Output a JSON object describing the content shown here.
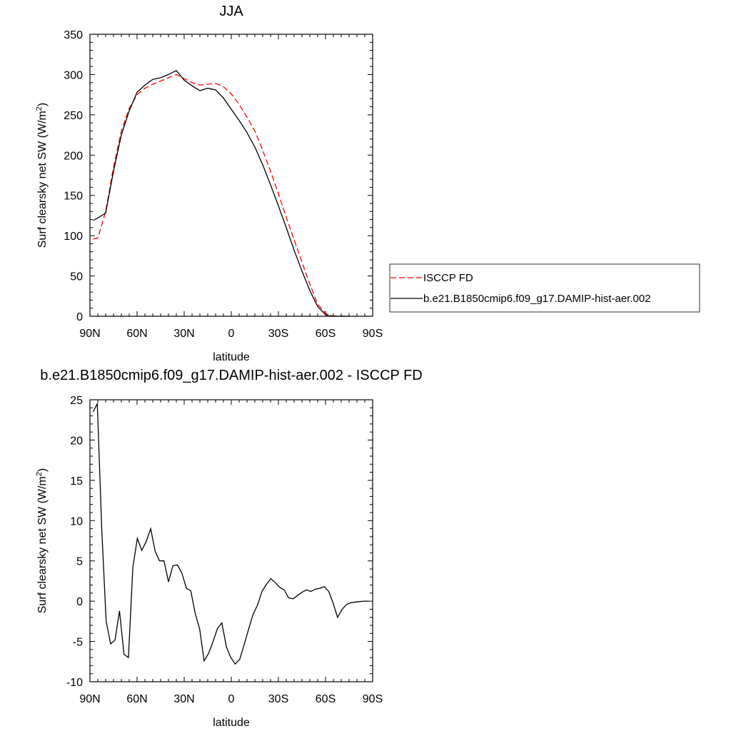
{
  "colors": {
    "obs": "#ff0000",
    "model": "#000000",
    "frame": "#000000",
    "background": "#ffffff"
  },
  "chart_data": [
    {
      "type": "line",
      "title": "JJA",
      "xlabel": "latitude",
      "ylabel": "Surf clearsky net SW (W/m",
      "ylabel_sup": "2",
      "ylabel_tail": ")",
      "xlim": [
        90,
        -90
      ],
      "ylim": [
        0,
        350
      ],
      "x_ticks": [
        90,
        60,
        30,
        0,
        -30,
        -60,
        -90
      ],
      "x_tick_labels": [
        "90N",
        "60N",
        "30N",
        "0",
        "30S",
        "60S",
        "90S"
      ],
      "y_ticks": [
        0,
        50,
        100,
        150,
        200,
        250,
        300,
        350
      ],
      "y_tick_labels": [
        "0",
        "50",
        "100",
        "150",
        "200",
        "250",
        "300",
        "350"
      ],
      "legend_position": "right",
      "series": [
        {
          "name": "ISCCP FD",
          "style": "dashed",
          "color": "#ff0000",
          "x": [
            88,
            85,
            80,
            75,
            70,
            65,
            60,
            55,
            50,
            45,
            40,
            35,
            30,
            25,
            20,
            15,
            10,
            5,
            0,
            -5,
            -10,
            -15,
            -20,
            -25,
            -30,
            -35,
            -40,
            -45,
            -50,
            -55,
            -60,
            -62,
            -65,
            -70,
            -75
          ],
          "y": [
            96,
            97,
            130,
            185,
            230,
            258,
            275,
            283,
            288,
            292,
            296,
            300,
            295,
            290,
            287,
            288,
            289,
            285,
            276,
            263,
            247,
            230,
            206,
            180,
            152,
            123,
            95,
            67,
            40,
            15,
            4,
            1.5,
            0.5,
            0,
            0
          ]
        },
        {
          "name": "b.e21.B1850cmip6.f09_g17.DAMIP-hist-aer.002",
          "style": "solid",
          "color": "#000000",
          "x": [
            88,
            85,
            80,
            75,
            70,
            65,
            60,
            55,
            50,
            45,
            40,
            35,
            30,
            25,
            20,
            15,
            10,
            5,
            0,
            -5,
            -10,
            -15,
            -20,
            -25,
            -30,
            -35,
            -40,
            -45,
            -50,
            -55,
            -60,
            -62,
            -65,
            -70,
            -75
          ],
          "y": [
            119,
            122,
            128,
            180,
            225,
            255,
            278,
            287,
            294,
            296,
            300,
            305,
            293,
            286,
            280,
            283,
            281,
            271,
            257,
            243,
            228,
            210,
            188,
            163,
            137,
            110,
            82,
            56,
            32,
            12,
            2,
            0.5,
            0,
            0,
            0
          ]
        }
      ]
    },
    {
      "type": "line",
      "title": "b.e21.B1850cmip6.f09_g17.DAMIP-hist-aer.002 - ISCCP FD",
      "xlabel": "latitude",
      "ylabel": "Surf clearsky net SW (W/m",
      "ylabel_sup": "2",
      "ylabel_tail": ")",
      "xlim": [
        90,
        -90
      ],
      "ylim": [
        -10,
        25
      ],
      "x_ticks": [
        90,
        60,
        30,
        0,
        -30,
        -60,
        -90
      ],
      "x_tick_labels": [
        "90N",
        "60N",
        "30N",
        "0",
        "30S",
        "60S",
        "90S"
      ],
      "y_ticks": [
        -10,
        -5,
        0,
        5,
        10,
        15,
        20,
        25
      ],
      "y_tick_labels": [
        "-10",
        "-5",
        "0",
        "5",
        "10",
        "15",
        "20",
        "25"
      ],
      "series": [
        {
          "color": "#000000",
          "style": "solid",
          "x": [
            88,
            85.3,
            82.5,
            79.7,
            76.8,
            74,
            71.2,
            68.3,
            65.5,
            62.7,
            59.8,
            57,
            54.2,
            51.3,
            48.5,
            45.7,
            42.8,
            40,
            37.2,
            34.3,
            31.5,
            28.6,
            25.8,
            23,
            20.1,
            17.3,
            14.5,
            11.6,
            8.8,
            6,
            3.1,
            0.3,
            -2.5,
            -5.4,
            -8.2,
            -11,
            -13.9,
            -16.7,
            -19.5,
            -22.4,
            -25.2,
            -28,
            -30.9,
            -33.7,
            -36.5,
            -39.4,
            -42.2,
            -45,
            -47.9,
            -50.7,
            -53.6,
            -56.4,
            -59.2,
            -62.1,
            -64.9,
            -67.7,
            -70.6,
            -73.4,
            -76.2,
            -79.1,
            -81.9,
            -84.7,
            -87.6
          ],
          "y": [
            23.5,
            24.5,
            9,
            -2.5,
            -5.3,
            -4.8,
            -1.2,
            -6.6,
            -7.0,
            4.2,
            7.8,
            6.3,
            7.4,
            9.0,
            6.2,
            5.0,
            5.0,
            2.4,
            4.4,
            4.5,
            3.5,
            1.6,
            1.3,
            -1.5,
            -3.5,
            -7.4,
            -6.5,
            -5.0,
            -3.4,
            -2.7,
            -5.7,
            -7.0,
            -7.8,
            -7.2,
            -5.4,
            -3.5,
            -1.6,
            -0.5,
            1.2,
            2.1,
            2.8,
            2.3,
            1.7,
            1.4,
            0.4,
            0.3,
            0.7,
            1.1,
            1.4,
            1.2,
            1.5,
            1.6,
            1.8,
            1.2,
            -0.3,
            -2.0,
            -1.0,
            -0.4,
            -0.2,
            -0.1,
            -0.05,
            0,
            0
          ]
        }
      ]
    }
  ]
}
